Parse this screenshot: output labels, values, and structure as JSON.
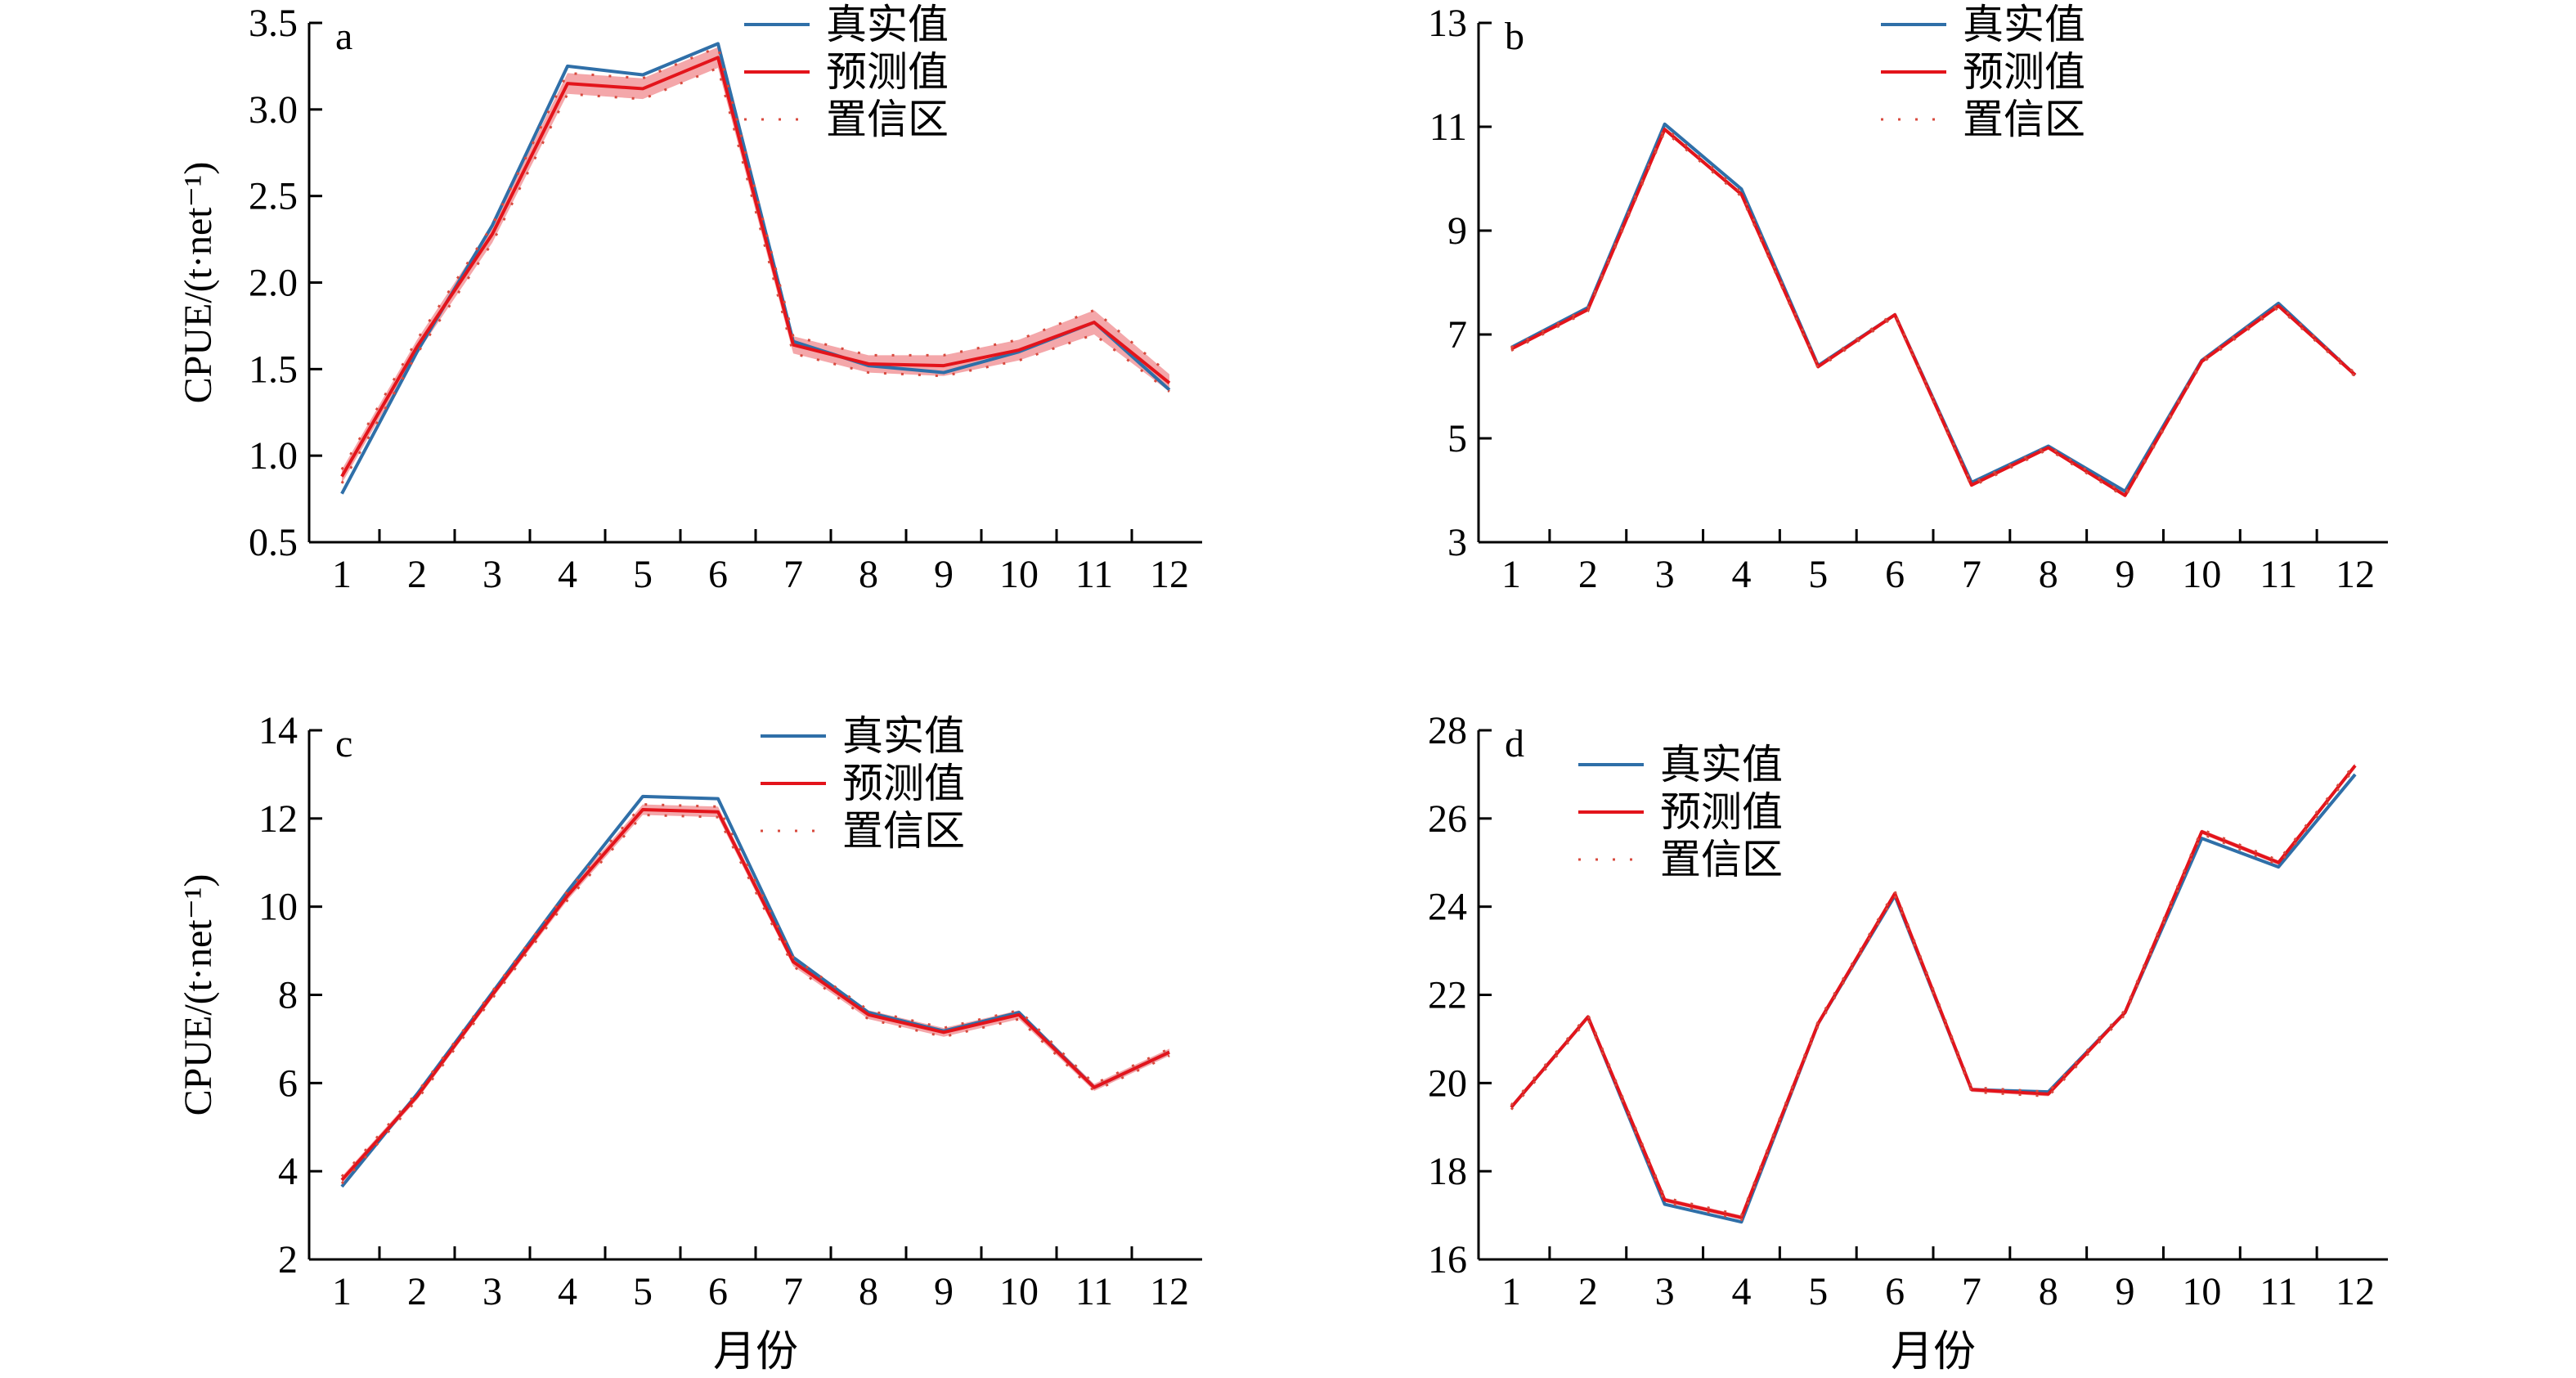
{
  "colors": {
    "true_line": "#2f6fa8",
    "pred_line": "#e3141b",
    "ci_band": "#f08a8e",
    "ci_dots": "#d84a3e",
    "axis": "#000000"
  },
  "chart_data": [
    {
      "panel": "a",
      "type": "line",
      "ylabel": "CPUE/(t·net⁻¹)",
      "xlabel": "",
      "ylim": [
        0.5,
        3.5
      ],
      "yticks": [
        0.5,
        1.0,
        1.5,
        2.0,
        2.5,
        3.0,
        3.5
      ],
      "ytick_labels": [
        "0.5",
        "1.0",
        "1.5",
        "2.0",
        "2.5",
        "3.0",
        "3.5"
      ],
      "categories": [
        "1",
        "2",
        "3",
        "4",
        "5",
        "6",
        "7",
        "8",
        "9",
        "10",
        "11",
        "12"
      ],
      "legend": {
        "placement": "top-center",
        "entries": [
          "真实值",
          "预测值",
          "置信区"
        ]
      },
      "series": [
        {
          "name": "真实值",
          "values": [
            0.78,
            1.6,
            2.33,
            3.25,
            3.2,
            3.38,
            1.66,
            1.52,
            1.48,
            1.6,
            1.77,
            1.38
          ]
        },
        {
          "name": "预测值",
          "values": [
            0.88,
            1.63,
            2.28,
            3.15,
            3.12,
            3.3,
            1.64,
            1.53,
            1.52,
            1.61,
            1.77,
            1.42
          ]
        },
        {
          "name": "置信区",
          "lower": [
            0.84,
            1.59,
            2.23,
            3.09,
            3.06,
            3.24,
            1.59,
            1.48,
            1.46,
            1.55,
            1.7,
            1.37
          ],
          "upper": [
            0.92,
            1.67,
            2.33,
            3.21,
            3.18,
            3.36,
            1.69,
            1.58,
            1.58,
            1.67,
            1.84,
            1.47
          ]
        }
      ]
    },
    {
      "panel": "b",
      "type": "line",
      "ylabel": "",
      "xlabel": "",
      "ylim": [
        3,
        13
      ],
      "yticks": [
        3,
        5,
        7,
        9,
        11,
        13
      ],
      "ytick_labels": [
        "3",
        "5",
        "7",
        "9",
        "11",
        "13"
      ],
      "categories": [
        "1",
        "2",
        "3",
        "4",
        "5",
        "6",
        "7",
        "8",
        "9",
        "10",
        "11",
        "12"
      ],
      "legend": {
        "placement": "top-center",
        "entries": [
          "真实值",
          "预测值",
          "置信区"
        ]
      },
      "series": [
        {
          "name": "真实值",
          "values": [
            6.75,
            7.52,
            11.05,
            9.8,
            6.4,
            7.38,
            4.15,
            4.85,
            3.98,
            6.5,
            7.6,
            6.22
          ]
        },
        {
          "name": "预测值",
          "values": [
            6.72,
            7.48,
            10.95,
            9.7,
            6.38,
            7.38,
            4.1,
            4.82,
            3.9,
            6.48,
            7.55,
            6.22
          ]
        },
        {
          "name": "置信区",
          "lower": [
            6.69,
            7.45,
            10.91,
            9.66,
            6.35,
            7.35,
            4.07,
            4.79,
            3.87,
            6.45,
            7.52,
            6.19
          ],
          "upper": [
            6.75,
            7.51,
            10.99,
            9.74,
            6.41,
            7.41,
            4.13,
            4.85,
            3.93,
            6.51,
            7.58,
            6.25
          ]
        }
      ]
    },
    {
      "panel": "c",
      "type": "line",
      "ylabel": "CPUE/(t·net⁻¹)",
      "xlabel": "月份",
      "ylim": [
        2,
        14
      ],
      "yticks": [
        2,
        4,
        6,
        8,
        10,
        12,
        14
      ],
      "ytick_labels": [
        "2",
        "4",
        "6",
        "8",
        "10",
        "12",
        "14"
      ],
      "categories": [
        "1",
        "2",
        "3",
        "4",
        "5",
        "6",
        "7",
        "8",
        "9",
        "10",
        "11",
        "12"
      ],
      "legend": {
        "placement": "top-center",
        "entries": [
          "真实值",
          "预测值",
          "置信区"
        ]
      },
      "series": [
        {
          "name": "真实值",
          "values": [
            3.65,
            5.75,
            8.05,
            10.35,
            12.5,
            12.45,
            8.85,
            7.6,
            7.18,
            7.6,
            5.9,
            6.7
          ]
        },
        {
          "name": "预测值",
          "values": [
            3.8,
            5.7,
            8.0,
            10.25,
            12.2,
            12.15,
            8.75,
            7.55,
            7.15,
            7.55,
            5.9,
            6.7
          ]
        },
        {
          "name": "置信区",
          "lower": [
            3.72,
            5.62,
            7.92,
            10.15,
            12.08,
            12.03,
            8.65,
            7.45,
            7.05,
            7.45,
            5.82,
            6.62
          ],
          "upper": [
            3.88,
            5.78,
            8.08,
            10.35,
            12.32,
            12.27,
            8.85,
            7.65,
            7.25,
            7.65,
            5.98,
            6.78
          ]
        }
      ]
    },
    {
      "panel": "d",
      "type": "line",
      "ylabel": "",
      "xlabel": "月份",
      "ylim": [
        16,
        28
      ],
      "yticks": [
        16,
        18,
        20,
        22,
        24,
        26,
        28
      ],
      "ytick_labels": [
        "16",
        "18",
        "20",
        "22",
        "24",
        "26",
        "28"
      ],
      "categories": [
        "1",
        "2",
        "3",
        "4",
        "5",
        "6",
        "7",
        "8",
        "9",
        "10",
        "11",
        "12"
      ],
      "legend": {
        "placement": "top-left",
        "entries": [
          "真实值",
          "预测值",
          "置信区"
        ]
      },
      "series": [
        {
          "name": "真实值",
          "values": [
            19.45,
            21.5,
            17.25,
            16.85,
            21.35,
            24.25,
            19.85,
            19.8,
            21.6,
            25.55,
            24.9,
            27.0
          ]
        },
        {
          "name": "预测值",
          "values": [
            19.45,
            21.5,
            17.35,
            16.95,
            21.35,
            24.3,
            19.85,
            19.75,
            21.6,
            25.7,
            25.0,
            27.2
          ]
        },
        {
          "name": "置信区",
          "lower": [
            19.4,
            21.45,
            17.3,
            16.9,
            21.3,
            24.25,
            19.8,
            19.7,
            21.55,
            25.65,
            24.95,
            27.15
          ],
          "upper": [
            19.5,
            21.55,
            17.4,
            17.0,
            21.4,
            24.35,
            19.9,
            19.8,
            21.65,
            25.75,
            25.05,
            27.25
          ]
        }
      ]
    }
  ]
}
